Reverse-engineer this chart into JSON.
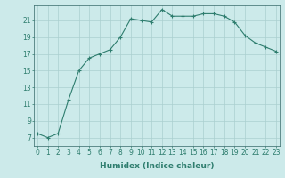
{
  "x": [
    0,
    1,
    2,
    3,
    4,
    5,
    6,
    7,
    8,
    9,
    10,
    11,
    12,
    13,
    14,
    15,
    16,
    17,
    18,
    19,
    20,
    21,
    22,
    23
  ],
  "y": [
    7.5,
    7.0,
    7.5,
    11.5,
    15.0,
    16.5,
    17.0,
    17.5,
    19.0,
    21.2,
    21.0,
    20.8,
    22.3,
    21.5,
    21.5,
    21.5,
    21.8,
    21.8,
    21.5,
    20.8,
    19.2,
    18.3,
    17.8,
    17.3
  ],
  "line_color": "#2e7d6e",
  "marker": "+",
  "marker_size": 3,
  "marker_lw": 0.8,
  "line_width": 0.8,
  "bg_color": "#cceaea",
  "grid_color": "#aacfcf",
  "xlabel": "Humidex (Indice chaleur)",
  "yticks": [
    7,
    9,
    11,
    13,
    15,
    17,
    19,
    21
  ],
  "xticks": [
    0,
    1,
    2,
    3,
    4,
    5,
    6,
    7,
    8,
    9,
    10,
    11,
    12,
    13,
    14,
    15,
    16,
    17,
    18,
    19,
    20,
    21,
    22,
    23
  ],
  "xlim": [
    -0.3,
    23.3
  ],
  "ylim": [
    6.0,
    22.8
  ],
  "xlabel_fontsize": 6.5,
  "tick_fontsize": 5.5,
  "spine_color": "#336666"
}
